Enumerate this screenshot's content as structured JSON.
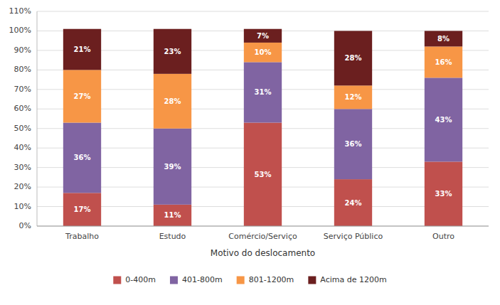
{
  "chart_data": {
    "type": "bar",
    "stacked": true,
    "xlabel": "Motivo do deslocamento",
    "categories": [
      "Trabalho",
      "Estudo",
      "Comércio/Serviço",
      "Serviço Público",
      "Outro"
    ],
    "series": [
      {
        "name": "0-400m",
        "color": "#c0504d",
        "values": [
          17,
          11,
          53,
          24,
          33
        ],
        "value_labels": [
          "17%",
          "11%",
          "53%",
          "24%",
          "33%"
        ]
      },
      {
        "name": "401-800m",
        "color": "#8064a2",
        "values": [
          36,
          39,
          31,
          36,
          43
        ],
        "value_labels": [
          "36%",
          "39%",
          "31%",
          "36%",
          "43%"
        ]
      },
      {
        "name": "801-1200m",
        "color": "#f79646",
        "values": [
          27,
          28,
          10,
          12,
          16
        ],
        "value_labels": [
          "27%",
          "28%",
          "10%",
          "12%",
          "16%"
        ]
      },
      {
        "name": "Acima de 1200m",
        "color": "#6b1f1f",
        "values": [
          21,
          23,
          7,
          28,
          8
        ],
        "value_labels": [
          "21%",
          "23%",
          "7%",
          "28%",
          "8%"
        ]
      }
    ],
    "ylim": [
      0,
      110
    ],
    "yticks": [
      {
        "value": 0,
        "label": "0%"
      },
      {
        "value": 10,
        "label": "10%"
      },
      {
        "value": 20,
        "label": "20%"
      },
      {
        "value": 30,
        "label": "30%"
      },
      {
        "value": 40,
        "label": "40%"
      },
      {
        "value": 50,
        "label": "50%"
      },
      {
        "value": 60,
        "label": "60%"
      },
      {
        "value": 70,
        "label": "70%"
      },
      {
        "value": 80,
        "label": "80%"
      },
      {
        "value": 90,
        "label": "90%"
      },
      {
        "value": 100,
        "label": "100%"
      },
      {
        "value": 110,
        "label": "110%"
      }
    ],
    "grid": true,
    "data_labels": true,
    "legend": "bottom"
  }
}
